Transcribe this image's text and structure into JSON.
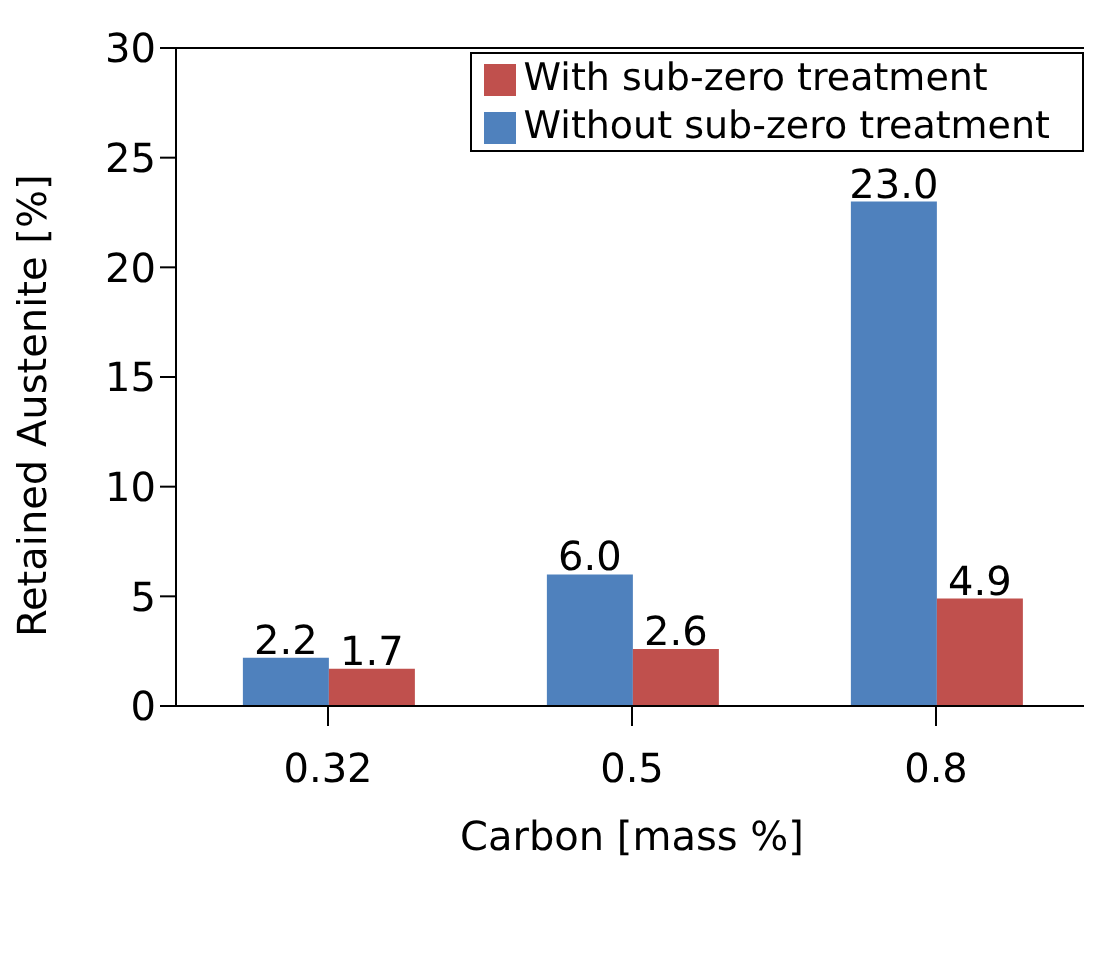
{
  "chart_data": {
    "type": "bar",
    "xlabel": "Carbon [mass %]",
    "ylabel": "Retained Austenite  [%]",
    "categories": [
      "0.32",
      "0.5",
      "0.8"
    ],
    "series": [
      {
        "name": "Without sub-zero treatment",
        "color": "#4f81bd",
        "values": [
          2.2,
          6.0,
          23.0
        ],
        "value_labels": [
          "2.2",
          "6.0",
          "23.0"
        ]
      },
      {
        "name": "With sub-zero treatment",
        "color": "#c0504d",
        "values": [
          1.7,
          2.6,
          4.9
        ],
        "value_labels": [
          "1.7",
          "2.6",
          "4.9"
        ]
      }
    ],
    "ylim": [
      0,
      30
    ],
    "yticks": [
      0,
      5,
      10,
      15,
      20,
      25,
      30
    ],
    "legend": "top right"
  }
}
